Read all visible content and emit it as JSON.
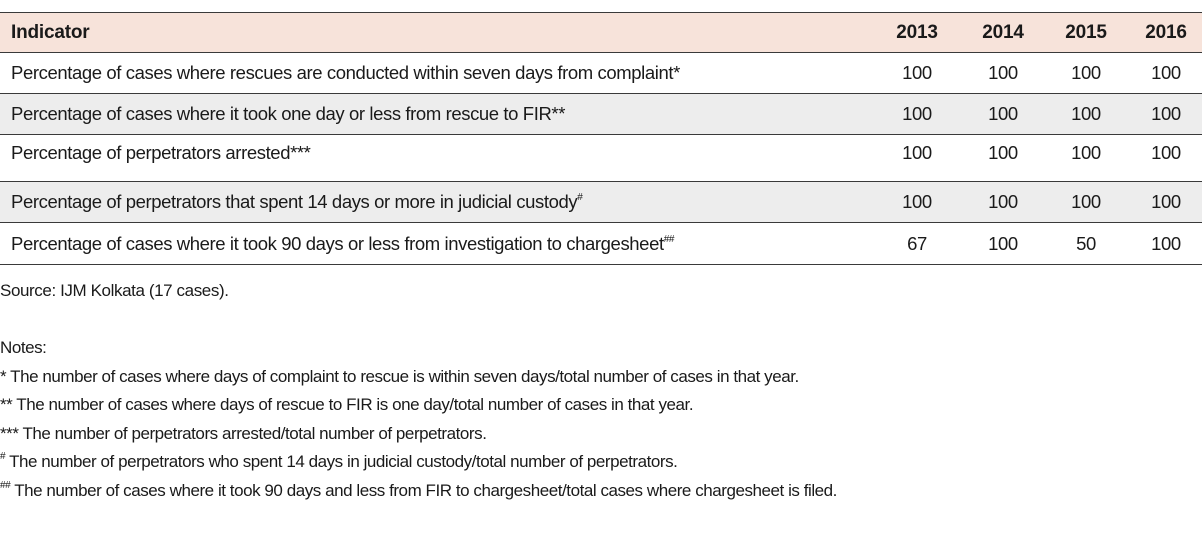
{
  "table": {
    "header": {
      "indicator": "Indicator",
      "years": [
        "2013",
        "2014",
        "2015",
        "2016"
      ]
    },
    "rows": [
      {
        "indicator": "Percentage of cases where rescues are conducted within seven days from complaint*",
        "mark": "",
        "values": [
          "100",
          "100",
          "100",
          "100"
        ]
      },
      {
        "indicator": "Percentage of cases where it took one day or less from rescue to FIR**",
        "mark": "",
        "values": [
          "100",
          "100",
          "100",
          "100"
        ]
      },
      {
        "indicator": "Percentage of perpetrators arrested***",
        "mark": "",
        "values": [
          "100",
          "100",
          "100",
          "100"
        ]
      },
      {
        "indicator": "Percentage of perpetrators that spent 14 days or more in judicial custody",
        "mark": "#",
        "values": [
          "100",
          "100",
          "100",
          "100"
        ]
      },
      {
        "indicator": "Percentage of cases where it took 90 days or less from investigation to chargesheet",
        "mark": "##",
        "values": [
          "67",
          "100",
          "50",
          "100"
        ]
      }
    ]
  },
  "source": "Source: IJM Kolkata (17 cases).",
  "notes": {
    "heading": "Notes:",
    "items": [
      {
        "mark": "",
        "text": "* The number of cases where days of complaint to rescue is within seven days/total number of cases in that year."
      },
      {
        "mark": "",
        "text": "** The number of cases where days of rescue to FIR is one day/total number of cases in that year."
      },
      {
        "mark": "",
        "text": "*** The number of perpetrators arrested/total number of perpetrators."
      },
      {
        "mark": "#",
        "text": " The number of perpetrators who spent 14 days in judicial custody/total number of perpetrators."
      },
      {
        "mark": "##",
        "text": " The number of cases where it took 90 days and less from FIR to chargesheet/total cases where chargesheet is filed."
      }
    ]
  }
}
